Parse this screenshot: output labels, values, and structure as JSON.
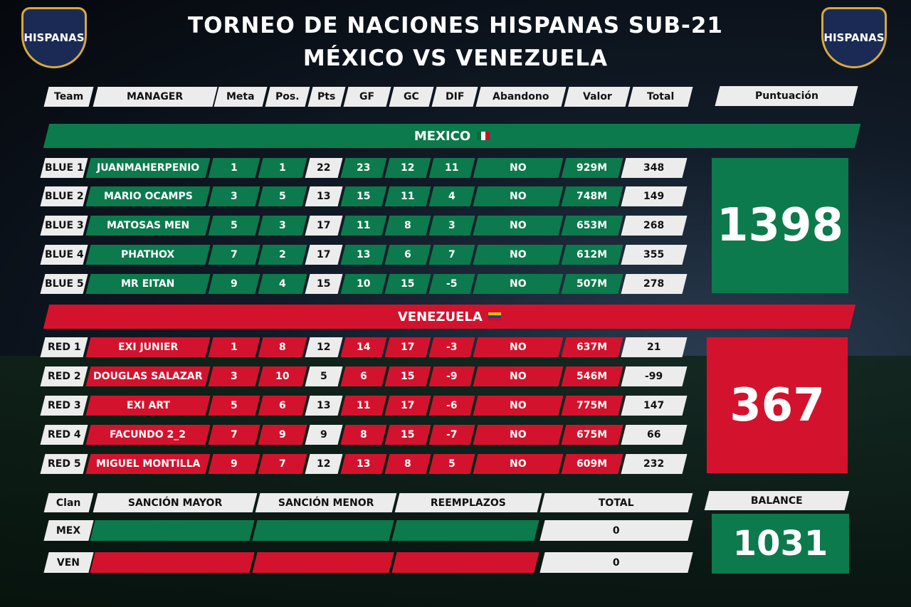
{
  "header": {
    "title": "TORNEO DE NACIONES HISPANAS SUB-21",
    "subtitle": "MÉXICO VS VENEZUELA",
    "logo": "HISPANAS"
  },
  "table": {
    "columns": [
      "Team",
      "MANAGER",
      "Meta",
      "Pos.",
      "Pts",
      "GF",
      "GC",
      "DIF",
      "Abandono",
      "Valor",
      "Total"
    ],
    "score_header": "Puntuación",
    "teams": [
      {
        "name": "MEXICO",
        "score": 1398,
        "rows": [
          [
            "BLUE 1",
            "JUANMAHERPENIO",
            1,
            1,
            22,
            23,
            12,
            11,
            "NO",
            "929M",
            348
          ],
          [
            "BLUE 2",
            "MARIO OCAMPS",
            3,
            5,
            13,
            15,
            11,
            4,
            "NO",
            "748M",
            149
          ],
          [
            "BLUE 3",
            "MATOSAS MEN",
            5,
            3,
            17,
            11,
            8,
            3,
            "NO",
            "653M",
            268
          ],
          [
            "BLUE 4",
            "PHATHOX",
            7,
            2,
            17,
            13,
            6,
            7,
            "NO",
            "612M",
            355
          ],
          [
            "BLUE 5",
            "MR EITAN",
            9,
            4,
            15,
            10,
            15,
            -5,
            "NO",
            "507M",
            278
          ]
        ]
      },
      {
        "name": "VENEZUELA",
        "score": 367,
        "rows": [
          [
            "RED 1",
            "EXI JUNIER",
            1,
            8,
            12,
            14,
            17,
            -3,
            "NO",
            "637M",
            21
          ],
          [
            "RED 2",
            "DOUGLAS SALAZAR",
            3,
            10,
            5,
            6,
            15,
            -9,
            "NO",
            "546M",
            -99
          ],
          [
            "RED 3",
            "EXI ART",
            5,
            6,
            13,
            11,
            17,
            -6,
            "NO",
            "775M",
            147
          ],
          [
            "RED 4",
            "FACUNDO 2_2",
            7,
            9,
            9,
            8,
            15,
            -7,
            "NO",
            "675M",
            66
          ],
          [
            "RED 5",
            "MIGUEL MONTILLA",
            9,
            7,
            12,
            13,
            8,
            5,
            "NO",
            "609M",
            232
          ]
        ]
      }
    ]
  },
  "sanctions": {
    "columns": [
      "Clan",
      "SANCIÓN MAYOR",
      "SANCIÓN MENOR",
      "REEMPLAZOS",
      "TOTAL"
    ],
    "rows": [
      {
        "clan": "MEX",
        "total": 0
      },
      {
        "clan": "VEN",
        "total": 0
      }
    ],
    "balance_label": "BALANCE",
    "balance": 1031
  }
}
